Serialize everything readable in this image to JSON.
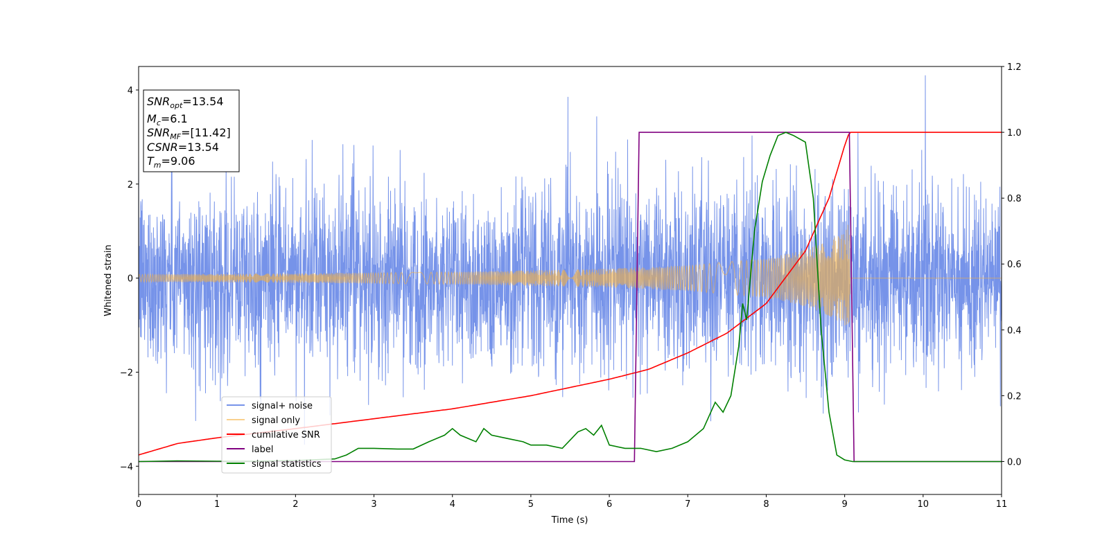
{
  "chart_data": {
    "type": "line",
    "title": "",
    "xlabel": "Time (s)",
    "ylabel": "Whitened strain",
    "ylabel_right": "",
    "xlim": [
      0,
      11
    ],
    "ylim": [
      -4.6,
      4.5
    ],
    "ylim_right": [
      -0.1,
      1.2
    ],
    "xticks": [
      "0",
      "1",
      "2",
      "3",
      "4",
      "5",
      "6",
      "7",
      "8",
      "9",
      "10",
      "11"
    ],
    "yticks_left": [
      "4",
      "2",
      "0",
      "−2",
      "−4"
    ],
    "yticks_right": [
      "1.2",
      "1.0",
      "0.8",
      "0.6",
      "0.4",
      "0.2",
      "0.0"
    ],
    "legend_position": "lower-left",
    "colors": {
      "signal_noise": "#4169e1",
      "signal_only": "#f5b041",
      "cumulative_snr": "#ff0000",
      "label": "#800080",
      "signal_statistics": "#008000"
    },
    "series": [
      {
        "name": "signal+ noise",
        "axis": "left",
        "style": "noise",
        "description_values": {
          "amplitude_sigma": 1.0,
          "t_start": 0,
          "t_end": 11
        }
      },
      {
        "name": "signal only",
        "axis": "left",
        "style": "chirp",
        "envelope": {
          "t": [
            0,
            2,
            4,
            6,
            7,
            8,
            8.5,
            8.8,
            9.0,
            9.06,
            9.07,
            11
          ],
          "amp": [
            0.08,
            0.1,
            0.13,
            0.2,
            0.27,
            0.42,
            0.6,
            0.8,
            1.0,
            1.2,
            0,
            0
          ]
        }
      },
      {
        "name": "cumilative SNR",
        "axis": "right",
        "x": [
          0,
          0.5,
          1,
          2,
          3,
          4,
          5,
          6,
          6.5,
          7,
          7.5,
          8,
          8.5,
          8.8,
          9.0,
          9.06,
          11
        ],
        "y": [
          0.02,
          0.055,
          0.072,
          0.1,
          0.13,
          0.16,
          0.2,
          0.25,
          0.28,
          0.33,
          0.39,
          0.48,
          0.64,
          0.8,
          0.96,
          1.0,
          1.0
        ]
      },
      {
        "name": "label",
        "axis": "right",
        "x": [
          0,
          6.32,
          6.38,
          9.06,
          9.12,
          11
        ],
        "y": [
          0,
          0,
          1,
          1,
          0,
          0
        ]
      },
      {
        "name": "signal statistics",
        "axis": "right",
        "x": [
          0,
          0.5,
          1,
          1.5,
          2,
          2.5,
          2.65,
          2.8,
          3,
          3.3,
          3.5,
          3.7,
          3.9,
          4.0,
          4.1,
          4.3,
          4.4,
          4.5,
          4.7,
          4.9,
          5.0,
          5.2,
          5.4,
          5.6,
          5.7,
          5.8,
          5.9,
          6.0,
          6.2,
          6.4,
          6.6,
          6.8,
          7.0,
          7.2,
          7.35,
          7.45,
          7.55,
          7.65,
          7.7,
          7.75,
          7.85,
          7.95,
          8.05,
          8.15,
          8.25,
          8.35,
          8.5,
          8.6,
          8.7,
          8.8,
          8.9,
          9.0,
          9.1,
          11
        ],
        "y": [
          0,
          0.002,
          0.001,
          0.001,
          0.003,
          0.008,
          0.02,
          0.04,
          0.04,
          0.038,
          0.038,
          0.06,
          0.08,
          0.1,
          0.08,
          0.06,
          0.1,
          0.08,
          0.07,
          0.06,
          0.05,
          0.05,
          0.04,
          0.09,
          0.1,
          0.08,
          0.11,
          0.05,
          0.04,
          0.04,
          0.03,
          0.04,
          0.06,
          0.1,
          0.18,
          0.15,
          0.2,
          0.35,
          0.48,
          0.43,
          0.7,
          0.85,
          0.93,
          0.99,
          1.0,
          0.99,
          0.97,
          0.8,
          0.4,
          0.15,
          0.02,
          0.005,
          0,
          0
        ]
      }
    ],
    "annotation": {
      "lines": [
        {
          "name": "SNR",
          "sub": "opt",
          "value": "=13.54"
        },
        {
          "name": "M",
          "sub": "c",
          "value": "=6.1"
        },
        {
          "name": "SNR",
          "sub": "MF",
          "value": "=[11.42]"
        },
        {
          "name": "CSNR",
          "sub": "",
          "value": "=13.54"
        },
        {
          "name": "T",
          "sub": "m",
          "value": "=9.06"
        }
      ]
    }
  }
}
